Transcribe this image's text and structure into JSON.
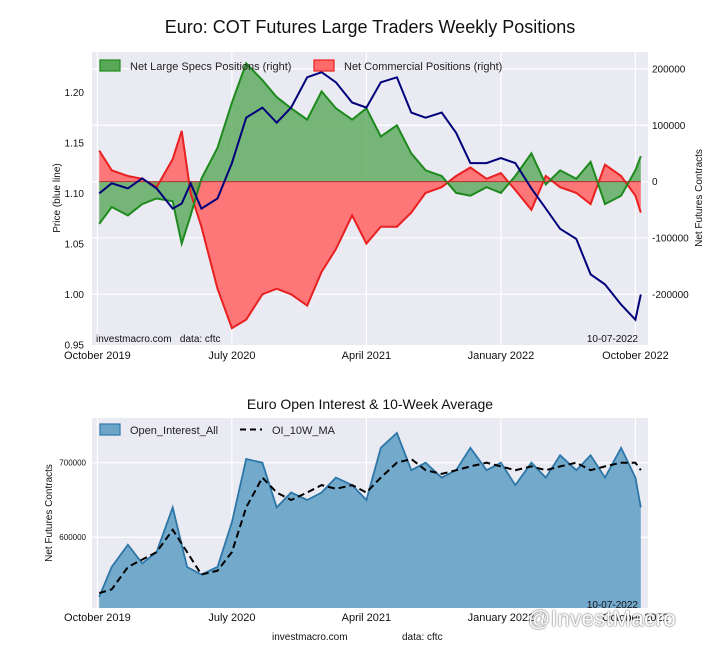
{
  "chart_data": [
    {
      "type": "line",
      "title": "Euro: COT Futures Large Traders Weekly Positions",
      "ylabel_left": "Price (blue line)",
      "ylabel_right": "Net Futures Contracts",
      "xticks": [
        "October 2019",
        "July 2020",
        "April 2021",
        "January 2022",
        "October 2022"
      ],
      "xrange": [
        2019.72,
        2022.82
      ],
      "ylim_left": [
        0.95,
        1.24
      ],
      "ylim_right": [
        -290000,
        230000
      ],
      "yticks_left": [
        "0.95",
        "1.00",
        "1.05",
        "1.10",
        "1.15",
        "1.20"
      ],
      "yticks_right": [
        "-200000",
        "-100000",
        "0",
        "100000",
        "200000"
      ],
      "legend": [
        "Net Large Specs Positions (right)",
        "Net Commercial Positions (right)"
      ],
      "legend_position": "top-left",
      "grid": true,
      "source_text": "investmacro.com   data: cftc",
      "date_label": "10-07-2022",
      "colors": {
        "specs_fill": "#58a858",
        "specs_line": "#1e8a1e",
        "comm_fill": "#ff6a6a",
        "comm_line": "#e82020",
        "price": "#00007a",
        "bg": "#eaeaf2"
      },
      "x": [
        2019.76,
        2019.83,
        2019.92,
        2020.0,
        2020.08,
        2020.17,
        2020.22,
        2020.27,
        2020.33,
        2020.42,
        2020.5,
        2020.58,
        2020.67,
        2020.75,
        2020.83,
        2020.92,
        2021.0,
        2021.08,
        2021.17,
        2021.25,
        2021.33,
        2021.42,
        2021.5,
        2021.58,
        2021.67,
        2021.75,
        2021.83,
        2021.92,
        2022.0,
        2022.08,
        2022.17,
        2022.25,
        2022.33,
        2022.42,
        2022.5,
        2022.58,
        2022.67,
        2022.75,
        2022.78
      ],
      "series": [
        {
          "name": "Net Large Specs Positions (right)",
          "values": [
            -75000,
            -45000,
            -60000,
            -40000,
            -30000,
            -35000,
            -110000,
            -60000,
            5000,
            60000,
            140000,
            210000,
            180000,
            150000,
            130000,
            110000,
            160000,
            130000,
            110000,
            130000,
            80000,
            100000,
            50000,
            20000,
            10000,
            -20000,
            -25000,
            -10000,
            -20000,
            10000,
            50000,
            -5000,
            20000,
            5000,
            35000,
            -40000,
            -25000,
            20000,
            45000
          ]
        },
        {
          "name": "Net Commercial Positions (right)",
          "values": [
            55000,
            20000,
            10000,
            5000,
            -10000,
            40000,
            90000,
            -20000,
            -80000,
            -190000,
            -260000,
            -245000,
            -200000,
            -190000,
            -200000,
            -220000,
            -160000,
            -120000,
            -60000,
            -110000,
            -80000,
            -80000,
            -55000,
            -20000,
            -10000,
            10000,
            25000,
            5000,
            15000,
            -15000,
            -50000,
            10000,
            -10000,
            -20000,
            -40000,
            30000,
            10000,
            -25000,
            -55000
          ]
        },
        {
          "name": "Price",
          "values": [
            1.1,
            1.11,
            1.105,
            1.115,
            1.105,
            1.085,
            1.09,
            1.11,
            1.085,
            1.095,
            1.13,
            1.175,
            1.185,
            1.17,
            1.185,
            1.215,
            1.22,
            1.21,
            1.19,
            1.185,
            1.21,
            1.215,
            1.18,
            1.175,
            1.18,
            1.16,
            1.13,
            1.13,
            1.135,
            1.13,
            1.105,
            1.085,
            1.065,
            1.055,
            1.02,
            1.01,
            0.99,
            0.975,
            1.0
          ]
        }
      ]
    },
    {
      "type": "area",
      "title": "Euro Open Interest & 10-Week Average",
      "ylabel": "Net Futures Contracts",
      "xticks": [
        "October 2019",
        "July 2020",
        "April 2021",
        "January 2022",
        "October 2022"
      ],
      "xrange": [
        2019.72,
        2022.82
      ],
      "ylim": [
        505000,
        760000
      ],
      "yticks": [
        "600000",
        "700000"
      ],
      "legend": [
        "Open_Interest_All",
        "OI_10W_MA"
      ],
      "legend_position": "top-left",
      "grid": true,
      "date_label": "10-07-2022",
      "colors": {
        "oi_fill": "#6da5c8",
        "oi_line": "#2c77a8",
        "ma_line": "#000000",
        "bg": "#eaeaf2"
      },
      "x": [
        2019.76,
        2019.83,
        2019.92,
        2020.0,
        2020.08,
        2020.17,
        2020.25,
        2020.33,
        2020.42,
        2020.5,
        2020.58,
        2020.67,
        2020.75,
        2020.83,
        2020.92,
        2021.0,
        2021.08,
        2021.17,
        2021.25,
        2021.33,
        2021.42,
        2021.5,
        2021.58,
        2021.67,
        2021.75,
        2021.83,
        2021.92,
        2022.0,
        2022.08,
        2022.17,
        2022.25,
        2022.33,
        2022.42,
        2022.5,
        2022.58,
        2022.67,
        2022.75,
        2022.78
      ],
      "series": [
        {
          "name": "Open_Interest_All",
          "values": [
            520000,
            560000,
            590000,
            565000,
            580000,
            640000,
            560000,
            550000,
            560000,
            620000,
            705000,
            700000,
            640000,
            660000,
            650000,
            660000,
            680000,
            670000,
            650000,
            720000,
            740000,
            690000,
            700000,
            680000,
            690000,
            720000,
            690000,
            700000,
            670000,
            700000,
            680000,
            710000,
            690000,
            710000,
            680000,
            720000,
            680000,
            640000
          ]
        },
        {
          "name": "OI_10W_MA",
          "values": [
            525000,
            530000,
            560000,
            570000,
            580000,
            610000,
            580000,
            550000,
            555000,
            580000,
            640000,
            680000,
            660000,
            650000,
            660000,
            670000,
            665000,
            670000,
            660000,
            680000,
            700000,
            705000,
            690000,
            685000,
            690000,
            695000,
            700000,
            695000,
            690000,
            695000,
            690000,
            695000,
            700000,
            690000,
            695000,
            700000,
            700000,
            690000
          ]
        }
      ]
    }
  ],
  "footer": {
    "site": "investmacro.com",
    "data": "data: cftc"
  },
  "watermark": "@InvestMacro"
}
